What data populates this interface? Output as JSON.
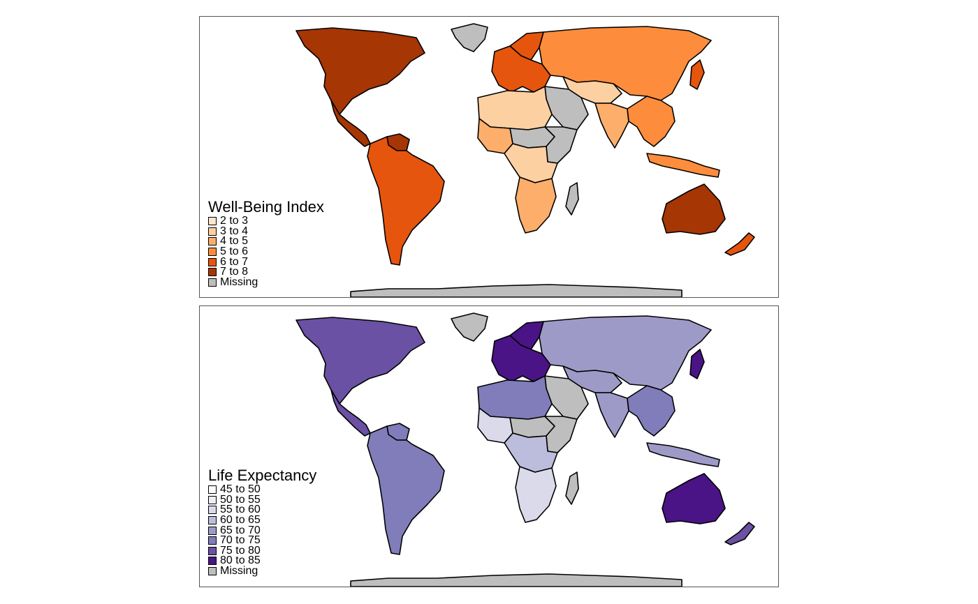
{
  "maps": [
    {
      "legend_title": "Well-Being Index",
      "classes": [
        {
          "label": "2 to 3",
          "color": "#fee6ce"
        },
        {
          "label": "3 to 4",
          "color": "#fdd0a2"
        },
        {
          "label": "4 to 5",
          "color": "#fdae6b"
        },
        {
          "label": "5 to 6",
          "color": "#fd8d3c"
        },
        {
          "label": "6 to 7",
          "color": "#e6550d"
        },
        {
          "label": "7 to 8",
          "color": "#a63603"
        },
        {
          "label": "Missing",
          "color": "#bebebe"
        }
      ],
      "regions": {
        "north_america": "#a63603",
        "greenland": "#bebebe",
        "mexico_central": "#a63603",
        "south_america": "#e6550d",
        "venezuela": "#a63603",
        "europe": "#e6550d",
        "scandinavia": "#e6550d",
        "russia_asia": "#fd8d3c",
        "middle_east": "#bebebe",
        "central_asia": "#fdd0a2",
        "india": "#fdae6b",
        "se_asia": "#fd8d3c",
        "north_africa": "#fdd0a2",
        "sahel": "#bebebe",
        "west_africa": "#fdae6b",
        "central_africa": "#fdd0a2",
        "east_africa": "#bebebe",
        "southern_africa": "#fdae6b",
        "madagascar": "#bebebe",
        "australia": "#a63603",
        "new_zealand": "#e6550d",
        "indonesia": "#fd8d3c",
        "japan": "#e6550d",
        "antarctica": "#bebebe"
      }
    },
    {
      "legend_title": "Life Expectancy",
      "classes": [
        {
          "label": "45 to 50",
          "color": "#fcfbfd"
        },
        {
          "label": "50 to 55",
          "color": "#efedf5"
        },
        {
          "label": "55 to 60",
          "color": "#dadaeb"
        },
        {
          "label": "60 to 65",
          "color": "#bcbddc"
        },
        {
          "label": "65 to 70",
          "color": "#9e9ac8"
        },
        {
          "label": "70 to 75",
          "color": "#807dba"
        },
        {
          "label": "75 to 80",
          "color": "#6a51a3"
        },
        {
          "label": "80 to 85",
          "color": "#4a1486"
        },
        {
          "label": "Missing",
          "color": "#bebebe"
        }
      ],
      "regions": {
        "north_america": "#6a51a3",
        "greenland": "#bebebe",
        "mexico_central": "#6a51a3",
        "south_america": "#807dba",
        "venezuela": "#807dba",
        "europe": "#4a1486",
        "scandinavia": "#4a1486",
        "russia_asia": "#9e9ac8",
        "middle_east": "#bebebe",
        "central_asia": "#9e9ac8",
        "india": "#9e9ac8",
        "se_asia": "#807dba",
        "north_africa": "#807dba",
        "sahel": "#bebebe",
        "west_africa": "#dadaeb",
        "central_africa": "#bcbddc",
        "east_africa": "#bebebe",
        "southern_africa": "#dadaeb",
        "madagascar": "#bebebe",
        "australia": "#4a1486",
        "new_zealand": "#6a51a3",
        "indonesia": "#9e9ac8",
        "japan": "#4a1486",
        "antarctica": "#bebebe"
      }
    }
  ]
}
